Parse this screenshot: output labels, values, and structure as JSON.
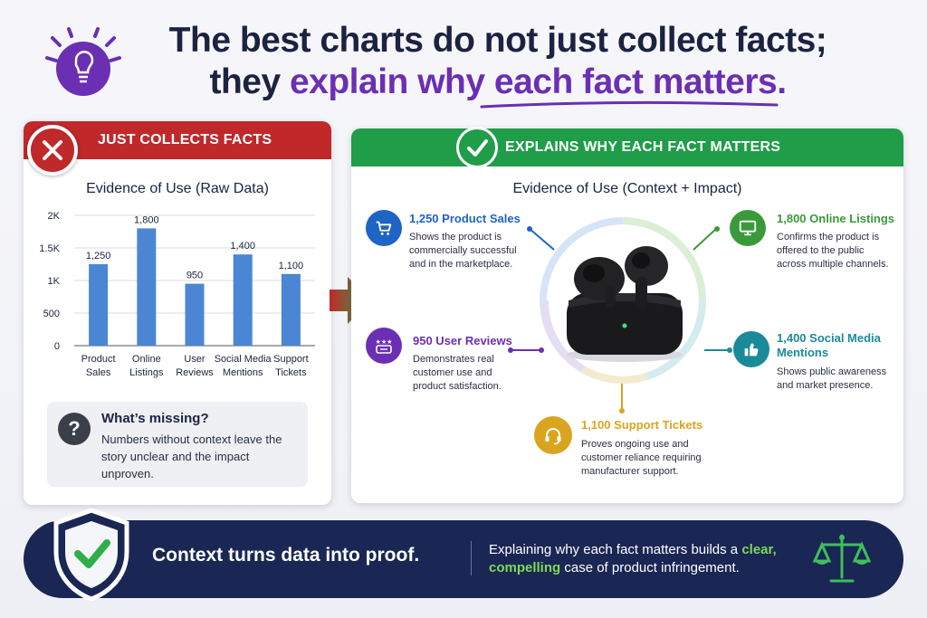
{
  "header": {
    "title_line1": "The best charts do not just collect facts;",
    "title_line2_prefix": "they ",
    "title_line2_highlight": "explain why each fact matters."
  },
  "left_panel": {
    "banner": "JUST COLLECTS FACTS",
    "subtitle": "Evidence of Use (Raw Data)",
    "missing": {
      "icon": "?",
      "heading": "What’s missing?",
      "text": "Numbers without context leave the story unclear and the impact unproven."
    }
  },
  "chart_data": {
    "type": "bar",
    "title": "Evidence of Use (Raw Data)",
    "categories": [
      "Product Sales",
      "Online Listings",
      "User Reviews",
      "Social Media Mentions",
      "Support Tickets"
    ],
    "category_lines": [
      [
        "Product",
        "Sales"
      ],
      [
        "Online",
        "Listings"
      ],
      [
        "User",
        "Reviews"
      ],
      [
        "Social Media",
        "Mentions"
      ],
      [
        "Support",
        "Tickets"
      ]
    ],
    "values": [
      1250,
      1800,
      950,
      1400,
      1100
    ],
    "value_labels": [
      "1,250",
      "1,800",
      "950",
      "1,400",
      "1,100"
    ],
    "ylim": [
      0,
      2000
    ],
    "yticks": [
      0,
      500,
      1000,
      1500,
      2000
    ],
    "ytick_labels": [
      "0",
      "500",
      "1K",
      "1.5K",
      "2K"
    ],
    "grid": true,
    "bar_color": "#4a86d4"
  },
  "right_panel": {
    "banner": "EXPLAINS WHY EACH FACT MATTERS",
    "subtitle": "Evidence of Use (Context + Impact)",
    "facts": [
      {
        "heading": "1,250 Product Sales",
        "text": [
          "Shows the product is",
          "commercially successful",
          "and in the marketplace."
        ],
        "icon": "cart-icon",
        "color": "#1e63c6"
      },
      {
        "heading": "1,800 Online Listings",
        "text": [
          "Confirms the product is",
          "offered to the public",
          "across multiple channels."
        ],
        "icon": "monitor-icon",
        "color": "#3a9a3a"
      },
      {
        "heading": "950 User Reviews",
        "text": [
          "Demonstrates real",
          "customer use and",
          "product satisfaction."
        ],
        "icon": "reviews-icon",
        "color": "#6b2fb3"
      },
      {
        "heading": "1,400 Social Media",
        "heading2": "Mentions",
        "text": [
          "Shows public awareness",
          "and market presence."
        ],
        "icon": "thumbs-up-icon",
        "color": "#1a8a99"
      },
      {
        "heading": "1,100 Support Tickets",
        "text": [
          "Proves ongoing use and",
          "customer reliance requiring",
          "manufacturer support."
        ],
        "icon": "headset-icon",
        "color": "#d9a520"
      }
    ]
  },
  "footer": {
    "main": "Context turns data into proof.",
    "text_a": "Explaining why each fact matters builds a ",
    "text_clear": "clear,",
    "text_compelling": "compelling",
    "text_b": " case of product infringement."
  },
  "colors": {
    "red": "#c0282a",
    "green": "#1f9d48",
    "purple": "#6b2fb3",
    "navy": "#1a2654",
    "bar": "#4a86d4"
  }
}
